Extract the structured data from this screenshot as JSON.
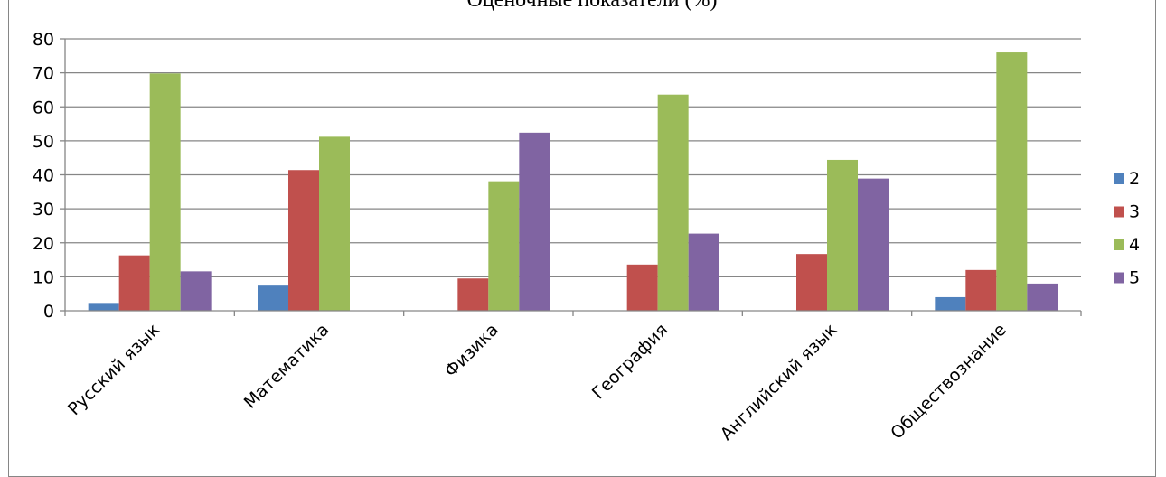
{
  "chart_data": {
    "type": "bar",
    "title": "Оценочные показатели (%)",
    "xlabel": "",
    "ylabel": "",
    "ylim": [
      0,
      80
    ],
    "yticks": [
      0,
      10,
      20,
      30,
      40,
      50,
      60,
      70,
      80
    ],
    "grid": true,
    "legend_position": "right",
    "categories": [
      "Русский язык",
      "Математика",
      "Физика",
      "География",
      "Английский язык",
      "Обществознание"
    ],
    "series": [
      {
        "name": "2",
        "color": "#4F81BD",
        "values": [
          2.3,
          7.4,
          0,
          0,
          0,
          4.0
        ]
      },
      {
        "name": "3",
        "color": "#C0504D",
        "values": [
          16.3,
          41.4,
          9.5,
          13.6,
          16.7,
          12.0
        ]
      },
      {
        "name": "4",
        "color": "#9BBB59",
        "values": [
          69.8,
          51.2,
          38.1,
          63.6,
          44.4,
          76.0
        ]
      },
      {
        "name": "5",
        "color": "#8064A2",
        "values": [
          11.6,
          0,
          52.4,
          22.7,
          38.9,
          8.0
        ]
      }
    ]
  }
}
